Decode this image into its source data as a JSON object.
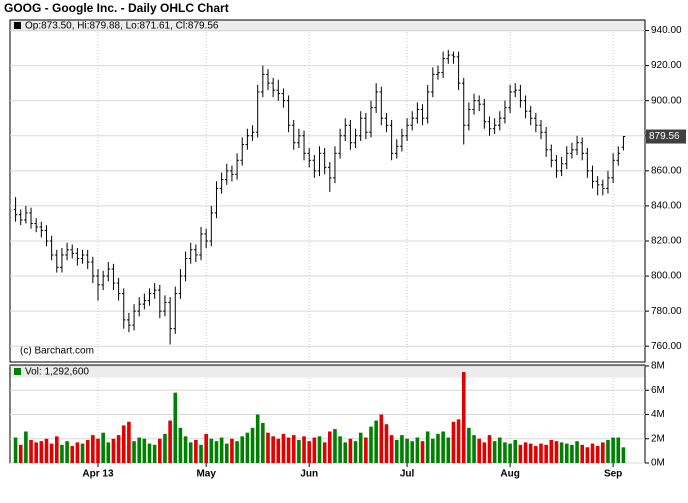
{
  "chart_data": {
    "type": "ohlc",
    "title": "GOOG - Google Inc. - Daily OHLC Chart",
    "ohlc_header": "Op:873.50, Hi:879.88, Lo:871.61, Cl:879.56",
    "volume_header": "Vol: 1,292,600",
    "credit": "(c) Barchart.com",
    "categories": [
      null,
      null,
      null,
      null,
      null,
      null,
      null,
      null,
      null,
      null,
      null,
      null,
      null,
      null,
      null,
      null,
      "Apr 13",
      null,
      null,
      null,
      null,
      null,
      null,
      null,
      null,
      null,
      null,
      null,
      null,
      null,
      null,
      null,
      null,
      null,
      null,
      null,
      null,
      "May",
      null,
      null,
      null,
      null,
      null,
      null,
      null,
      null,
      null,
      null,
      null,
      null,
      null,
      null,
      null,
      null,
      null,
      null,
      null,
      "Jun",
      null,
      null,
      null,
      null,
      null,
      null,
      null,
      null,
      null,
      null,
      null,
      null,
      null,
      null,
      null,
      null,
      null,
      null,
      "Jul",
      null,
      null,
      null,
      null,
      null,
      null,
      null,
      null,
      null,
      null,
      null,
      null,
      null,
      null,
      null,
      null,
      null,
      null,
      null,
      "Aug",
      null,
      null,
      null,
      null,
      null,
      null,
      null,
      null,
      null,
      null,
      null,
      null,
      null,
      null,
      null,
      null,
      null,
      null,
      null,
      "Sep",
      null,
      null
    ],
    "open": [
      838,
      835,
      832,
      836,
      830,
      828,
      826,
      820,
      812,
      805,
      812,
      815,
      813,
      810,
      812,
      808,
      800,
      795,
      800,
      804,
      796,
      790,
      775,
      772,
      780,
      784,
      786,
      790,
      792,
      780,
      785,
      770,
      790,
      800,
      810,
      815,
      812,
      824,
      820,
      836,
      850,
      855,
      860,
      858,
      866,
      875,
      880,
      882,
      905,
      915,
      910,
      906,
      904,
      900,
      886,
      876,
      880,
      870,
      866,
      860,
      870,
      862,
      856,
      870,
      880,
      886,
      876,
      880,
      890,
      882,
      896,
      905,
      890,
      886,
      870,
      874,
      880,
      886,
      890,
      895,
      890,
      905,
      915,
      916,
      924,
      926,
      925,
      910,
      886,
      895,
      900,
      898,
      888,
      884,
      886,
      890,
      896,
      905,
      906,
      900,
      894,
      890,
      886,
      882,
      872,
      866,
      860,
      864,
      870,
      872,
      876,
      870,
      860,
      854,
      852,
      850,
      856,
      866,
      873.5
    ],
    "high": [
      845,
      838,
      840,
      839,
      833,
      831,
      829,
      823,
      815,
      816,
      819,
      818,
      816,
      815,
      815,
      811,
      804,
      803,
      808,
      807,
      799,
      793,
      779,
      784,
      788,
      790,
      793,
      796,
      795,
      789,
      788,
      794,
      804,
      814,
      819,
      818,
      828,
      827,
      840,
      854,
      859,
      864,
      863,
      870,
      879,
      884,
      886,
      909,
      920,
      918,
      913,
      912,
      907,
      903,
      889,
      884,
      883,
      873,
      869,
      874,
      873,
      865,
      874,
      884,
      890,
      889,
      884,
      894,
      893,
      900,
      910,
      908,
      893,
      889,
      878,
      884,
      890,
      894,
      899,
      898,
      909,
      919,
      920,
      928,
      929,
      928,
      928,
      913,
      899,
      904,
      903,
      901,
      891,
      890,
      894,
      900,
      909,
      910,
      909,
      903,
      897,
      893,
      889,
      885,
      875,
      869,
      868,
      874,
      876,
      880,
      879,
      873,
      863,
      857,
      855,
      860,
      870,
      874,
      879.88
    ],
    "low": [
      831,
      829,
      830,
      827,
      825,
      822,
      817,
      809,
      802,
      802,
      809,
      810,
      806,
      807,
      804,
      796,
      786,
      792,
      797,
      792,
      786,
      770,
      768,
      769,
      777,
      781,
      783,
      787,
      776,
      777,
      761,
      767,
      787,
      797,
      807,
      808,
      809,
      816,
      817,
      833,
      847,
      852,
      854,
      855,
      863,
      872,
      877,
      879,
      902,
      906,
      902,
      900,
      896,
      882,
      872,
      873,
      866,
      862,
      856,
      857,
      858,
      848,
      853,
      867,
      877,
      872,
      873,
      877,
      878,
      879,
      893,
      886,
      882,
      866,
      867,
      871,
      877,
      883,
      887,
      886,
      887,
      902,
      912,
      913,
      921,
      921,
      906,
      875,
      883,
      892,
      894,
      884,
      880,
      881,
      883,
      887,
      893,
      902,
      896,
      890,
      886,
      882,
      878,
      868,
      862,
      856,
      857,
      861,
      867,
      869,
      866,
      856,
      850,
      846,
      846,
      847,
      853,
      863,
      871.61
    ],
    "close": [
      835,
      832,
      836,
      830,
      828,
      826,
      820,
      812,
      805,
      812,
      815,
      813,
      810,
      812,
      808,
      800,
      795,
      800,
      804,
      796,
      790,
      775,
      772,
      780,
      784,
      786,
      790,
      792,
      780,
      785,
      770,
      790,
      800,
      810,
      815,
      812,
      824,
      820,
      836,
      850,
      855,
      860,
      858,
      866,
      875,
      880,
      882,
      905,
      915,
      910,
      906,
      904,
      900,
      886,
      876,
      880,
      870,
      866,
      860,
      870,
      862,
      856,
      870,
      880,
      886,
      876,
      880,
      890,
      882,
      896,
      905,
      890,
      886,
      870,
      874,
      880,
      886,
      890,
      895,
      890,
      905,
      915,
      916,
      924,
      926,
      925,
      910,
      886,
      895,
      900,
      898,
      888,
      884,
      886,
      890,
      896,
      905,
      906,
      900,
      894,
      890,
      886,
      882,
      872,
      866,
      860,
      864,
      870,
      872,
      876,
      870,
      860,
      854,
      852,
      850,
      856,
      866,
      870,
      879.56
    ],
    "volume": [
      2100000,
      1500000,
      2600000,
      1900000,
      1700000,
      1800000,
      2000000,
      1600000,
      2200000,
      1500000,
      1800000,
      1400000,
      1700000,
      1600000,
      1900000,
      2300000,
      2000000,
      2500000,
      1700000,
      2000000,
      2300000,
      3100000,
      3400000,
      1800000,
      2100000,
      2000000,
      1600000,
      1500000,
      2000000,
      2400000,
      3500000,
      5800000,
      2900000,
      2200000,
      1700000,
      1900000,
      1500000,
      2400000,
      2000000,
      1800000,
      2100000,
      1600000,
      2000000,
      1800000,
      2200000,
      2500000,
      2900000,
      4000000,
      3300000,
      2500000,
      2200000,
      2000000,
      2400000,
      2100000,
      2300000,
      1900000,
      2200000,
      1800000,
      2100000,
      2200000,
      1700000,
      2600000,
      2800000,
      2200000,
      1700000,
      2000000,
      1800000,
      2500000,
      2100000,
      3000000,
      3500000,
      4000000,
      3200000,
      2300000,
      1900000,
      2300000,
      2000000,
      1800000,
      2100000,
      1800000,
      2600000,
      2000000,
      2400000,
      2600000,
      2100000,
      3400000,
      3600000,
      7500000,
      2900000,
      2300000,
      2000000,
      1700000,
      2300000,
      1800000,
      2100000,
      1700000,
      1600000,
      1900000,
      1500000,
      1700000,
      1600000,
      1400000,
      1600000,
      1500000,
      1900000,
      1800000,
      1700000,
      1600000,
      1500000,
      1800000,
      1500000,
      1300000,
      1600000,
      1400000,
      1700000,
      1900000,
      2100000,
      2100000,
      1292600
    ],
    "ylim": [
      751,
      946
    ],
    "yticks": [
      {
        "value": 760,
        "label": "760.00"
      },
      {
        "value": 780,
        "label": "780.00"
      },
      {
        "value": 800,
        "label": "800.00"
      },
      {
        "value": 820,
        "label": "820.00"
      },
      {
        "value": 840,
        "label": "840.00"
      },
      {
        "value": 860,
        "label": "860.00"
      },
      {
        "value": 880,
        "label": "880.00"
      },
      {
        "value": 900,
        "label": "900.00"
      },
      {
        "value": 920,
        "label": "920.00"
      },
      {
        "value": 940,
        "label": "940.00"
      }
    ],
    "volume_ylim": [
      0,
      8000000
    ],
    "volume_yticks": [
      {
        "value": 0,
        "label": "0M"
      },
      {
        "value": 2000000,
        "label": "2M"
      },
      {
        "value": 4000000,
        "label": "4M"
      },
      {
        "value": 6000000,
        "label": "6M"
      },
      {
        "value": 8000000,
        "label": "8M"
      }
    ],
    "bar_color": "#000000",
    "up_color": "#008000",
    "down_color": "#e00000",
    "grid": true
  }
}
